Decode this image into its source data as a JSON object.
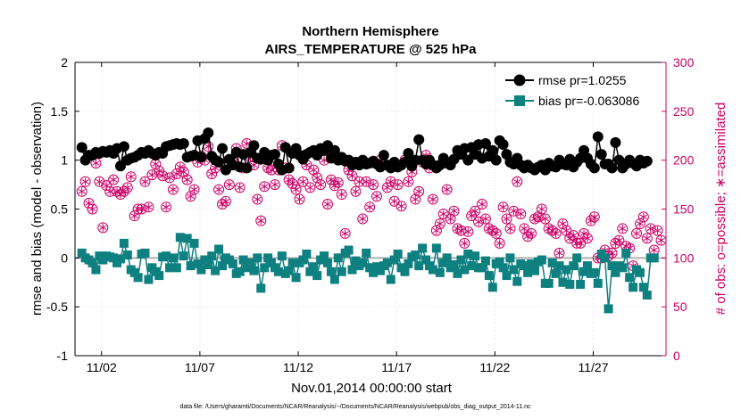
{
  "chart_data": {
    "type": "line",
    "title": "Northern Hemisphere",
    "subtitle": "AIRS_TEMPERATURE @ 525 hPa",
    "xlabel": "Nov.01,2014 00:00:00 start",
    "ylabel": "rmse and bias (model - observation)",
    "ylabel_right": "# of obs: o=possible; ∗=assimilated",
    "footnote": "data file: /Users/gharamti/Documents/NCAR/Reanalysis/~/Documents/NCAR/Reanalysis/webpub/obs_diag_output_2014-11.nc",
    "xlim": [
      0.65,
      30.7
    ],
    "ylim": [
      -1,
      2
    ],
    "ylim_right": [
      0,
      300
    ],
    "x_ticks": [
      2,
      7,
      12,
      17,
      22,
      27
    ],
    "x_tick_labels": [
      "11/02",
      "11/07",
      "11/12",
      "11/17",
      "11/22",
      "11/27"
    ],
    "y_ticks": [
      -1,
      -0.5,
      0,
      0.5,
      1,
      1.5,
      2
    ],
    "y_tick_labels": [
      "-1",
      "-0.5",
      "0",
      "0.5",
      "1",
      "1.5",
      "2"
    ],
    "y_ticks_right": [
      0,
      50,
      100,
      150,
      200,
      250,
      300
    ],
    "y_tick_labels_right": [
      "0",
      "50",
      "100",
      "150",
      "200",
      "250",
      "300"
    ],
    "grid": true,
    "legend_position": "top-right",
    "colors": {
      "rmse": "#000000",
      "bias": "#0f8080",
      "obs": "#cc0066",
      "zero_line": "#b0b0b0"
    },
    "series": [
      {
        "name": "rmse pr=1.0255",
        "axis": "left",
        "marker": "circle",
        "values": [
          1.13,
          1.0,
          1.05,
          1.05,
          1.08,
          1.07,
          1.09,
          1.08,
          1.1,
          1.07,
          1.12,
          0.94,
          1.14,
          1.0,
          1.02,
          1.03,
          1.05,
          1.08,
          1.07,
          1.1,
          1.07,
          1.05,
          1.08,
          1.07,
          1.14,
          1.15,
          1.16,
          1.17,
          1.16,
          1.17,
          1.03,
          1.04,
          1.05,
          1.2,
          1.03,
          1.22,
          1.28,
          1.04,
          1.0,
          0.98,
          1.12,
          0.9,
          1.01,
          0.95,
          1.08,
          0.93,
          1.06,
          0.92,
          1.08,
          1.15,
          1.02,
          1.01,
          1.08,
          1.0,
          1.05,
          1.06,
          0.96,
          0.9,
          1.13,
          0.92,
          1.07,
          1.12,
          1.05,
          1.01,
          1.06,
          1.08,
          1.1,
          1.05,
          1.12,
          1.1,
          1.15,
          1.02,
          1.1,
          1.0,
          1.03,
          0.99,
          1.0,
          0.95,
          0.98,
          0.95,
          1.0,
          0.96,
          0.97,
          0.99,
          0.96,
          0.93,
          1.05,
          0.95,
          0.92,
          0.98,
          0.93,
          0.95,
          0.98,
          1.07,
          0.94,
          1.0,
          1.21,
          1.0,
          0.96,
          1.0,
          0.95,
          0.92,
          0.95,
          1.02,
          0.97,
          0.95,
          1.01,
          1.1,
          1.06,
          1.12,
          1.0,
          1.13,
          1.06,
          1.16,
          1.02,
          1.17,
          1.04,
          1.1,
          1.0,
          1.2,
          1.16,
          1.06,
          0.98,
          0.96,
          1.02,
          0.95,
          0.92,
          0.95,
          0.92,
          0.9,
          0.93,
          0.95,
          0.9,
          0.97,
          0.94,
          0.93,
          1.0,
          0.96,
          0.95,
          1.01,
          0.93,
          0.98,
          1.02,
          1.1,
          1.02,
          0.96,
          0.92,
          1.24,
          1.06,
          0.96,
          0.96,
          0.92,
          1.18,
          1.0,
          0.92,
          0.96,
          1.0,
          0.97,
          0.94,
          1.0,
          0.97,
          0.99
        ]
      },
      {
        "name": "bias pr=-0.063086",
        "axis": "left",
        "marker": "square",
        "values": [
          0.05,
          0.0,
          -0.02,
          -0.05,
          -0.12,
          0.02,
          -0.02,
          0.02,
          0.01,
          0.0,
          -0.05,
          -0.01,
          0.15,
          0.03,
          -0.12,
          -0.15,
          -0.2,
          0.04,
          0.05,
          -0.22,
          -0.1,
          -0.14,
          -0.18,
          0.01,
          0.02,
          -0.1,
          0.0,
          -0.1,
          0.21,
          0.02,
          0.2,
          -0.08,
          0.15,
          -0.06,
          -0.12,
          -0.02,
          -0.07,
          0.02,
          -0.13,
          0.09,
          -0.08,
          0.0,
          -0.02,
          -0.06,
          -0.16,
          -0.14,
          -0.02,
          -0.1,
          -0.05,
          -0.13,
          0.0,
          -0.31,
          -0.1,
          0.0,
          -0.05,
          -0.1,
          -0.14,
          0.02,
          -0.16,
          -0.13,
          -0.05,
          -0.2,
          -0.05,
          -0.02,
          0.04,
          -0.14,
          -0.09,
          -0.18,
          -0.02,
          0.02,
          -0.05,
          -0.14,
          -0.22,
          0.0,
          -0.14,
          0.05,
          0.08,
          -0.12,
          -0.03,
          -0.08,
          -0.05,
          0.05,
          -0.1,
          -0.15,
          -0.09,
          -0.13,
          -0.08,
          -0.05,
          -0.22,
          -0.02,
          0.04,
          -0.1,
          -0.14,
          -0.06,
          0.01,
          0.03,
          -0.08,
          0.1,
          -0.02,
          -0.08,
          -0.12,
          0.1,
          -0.15,
          -0.05,
          0.0,
          -0.1,
          -0.07,
          -0.16,
          -0.02,
          -0.12,
          0.04,
          -0.08,
          0.02,
          -0.1,
          -0.1,
          -0.03,
          -0.18,
          -0.3,
          -0.06,
          -0.04,
          -0.1,
          -0.18,
          0.0,
          -0.12,
          -0.24,
          -0.06,
          -0.08,
          -0.15,
          -0.06,
          -0.13,
          -0.04,
          -0.02,
          -0.26,
          -0.26,
          -0.05,
          -0.16,
          -0.08,
          -0.25,
          -0.12,
          -0.27,
          -0.08,
          0.0,
          -0.27,
          -0.14,
          -0.08,
          -0.16,
          -0.15,
          -0.26,
          0.04,
          0.0,
          -0.52,
          -0.08,
          -0.15,
          -0.08,
          -0.1,
          0.05,
          -0.2,
          -0.3,
          -0.12,
          -0.15,
          -0.3,
          -0.38,
          0.0,
          0.0
        ]
      },
      {
        "name": "# of obs possible",
        "axis": "right",
        "marker": "circle-open",
        "values": [
          168,
          178,
          156,
          150,
          197,
          178,
          131,
          174,
          168,
          180,
          168,
          165,
          168,
          172,
          183,
          143,
          150,
          150,
          178,
          152,
          185,
          196,
          189,
          184,
          152,
          182,
          170,
          186,
          193,
          188,
          180,
          163,
          170,
          198,
          204,
          200,
          214,
          186,
          192,
          170,
          155,
          158,
          175,
          198,
          212,
          172,
          192,
          217,
          203,
          195,
          160,
          138,
          173,
          192,
          190,
          175,
          190,
          215,
          192,
          180,
          176,
          170,
          160,
          178,
          195,
          172,
          190,
          182,
          175,
          200,
          155,
          180,
          174,
          177,
          165,
          125,
          190,
          184,
          168,
          178,
          140,
          178,
          152,
          175,
          163,
          200,
          195,
          172,
          178,
          158,
          175,
          153,
          200,
          178,
          188,
          160,
          168,
          198,
          205,
          192,
          160,
          128,
          135,
          145,
          170,
          140,
          148,
          130,
          128,
          115,
          127,
          143,
          148,
          137,
          155,
          140,
          130,
          128,
          125,
          115,
          152,
          140,
          130,
          148,
          178,
          145,
          130,
          122,
          125,
          140,
          142,
          150,
          140,
          130,
          128,
          125,
          105,
          135,
          128,
          120,
          123,
          115,
          115,
          125,
          120,
          138,
          142,
          100,
          100,
          108,
          102,
          105,
          115,
          118,
          130,
          112,
          110,
          92,
          125,
          135,
          142,
          120,
          130,
          108,
          128,
          118
        ]
      },
      {
        "name": "# of obs assimilated",
        "axis": "right",
        "marker": "asterisk",
        "values": [
          168,
          178,
          156,
          150,
          197,
          178,
          131,
          174,
          168,
          180,
          168,
          165,
          168,
          172,
          183,
          143,
          150,
          150,
          178,
          152,
          185,
          196,
          189,
          184,
          152,
          182,
          170,
          186,
          193,
          188,
          180,
          163,
          170,
          198,
          204,
          200,
          214,
          186,
          192,
          170,
          155,
          158,
          175,
          198,
          212,
          172,
          192,
          217,
          203,
          195,
          160,
          138,
          173,
          192,
          190,
          175,
          190,
          215,
          192,
          180,
          176,
          170,
          160,
          178,
          195,
          172,
          190,
          182,
          175,
          200,
          155,
          180,
          174,
          177,
          165,
          125,
          190,
          184,
          168,
          178,
          140,
          178,
          152,
          175,
          163,
          200,
          195,
          172,
          178,
          158,
          175,
          153,
          200,
          178,
          188,
          160,
          168,
          198,
          205,
          192,
          160,
          128,
          135,
          145,
          170,
          140,
          148,
          130,
          128,
          115,
          127,
          143,
          148,
          137,
          155,
          140,
          130,
          128,
          125,
          115,
          152,
          140,
          130,
          148,
          178,
          145,
          130,
          122,
          125,
          140,
          142,
          150,
          140,
          130,
          128,
          125,
          105,
          135,
          128,
          120,
          123,
          115,
          115,
          125,
          120,
          138,
          142,
          100,
          100,
          108,
          102,
          105,
          115,
          118,
          130,
          112,
          110,
          92,
          125,
          135,
          142,
          120,
          130,
          108,
          128,
          118
        ]
      }
    ],
    "x_start": 1.0,
    "x_step": 0.1785
  }
}
